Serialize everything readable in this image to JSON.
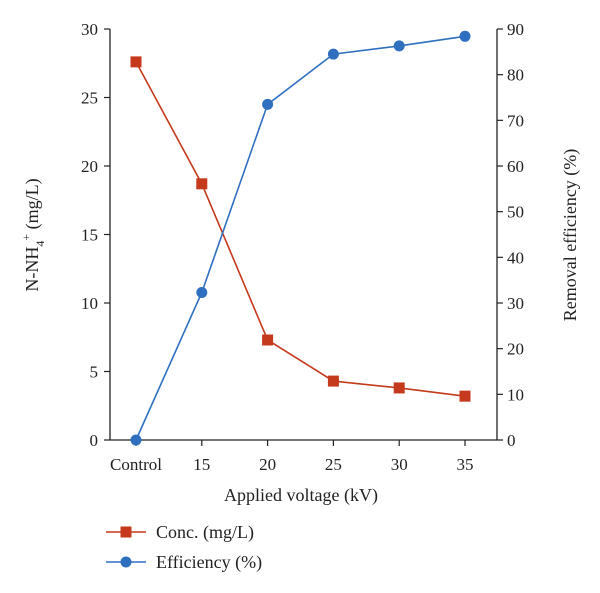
{
  "chart_data": {
    "type": "line",
    "categories": [
      "Control",
      "15",
      "20",
      "25",
      "30",
      "35"
    ],
    "xlabel": "Applied voltage (kV)",
    "ylabel_left": {
      "prefix": "N-NH",
      "sub": "4",
      "sup": "+",
      "suffix": " (mg/L)"
    },
    "ylabel_right": "Removal efficiency (%)",
    "ylim_left": [
      0,
      30
    ],
    "ylim_right": [
      0,
      90
    ],
    "yticks_left": [
      0,
      5,
      10,
      15,
      20,
      25,
      30
    ],
    "yticks_right": [
      0,
      10,
      20,
      30,
      40,
      50,
      60,
      70,
      80,
      90
    ],
    "grid": false,
    "legend_position": "bottom-left",
    "series": [
      {
        "name": "Conc. (mg/L)",
        "axis": "left",
        "marker": "square",
        "color": "#c5391c",
        "values": [
          27.6,
          18.7,
          7.3,
          4.3,
          3.8,
          3.2
        ]
      },
      {
        "name": "Efficiency (%)",
        "axis": "right",
        "marker": "circle",
        "color": "#2f6fbf",
        "values": [
          0,
          32.3,
          73.5,
          84.5,
          86.3,
          88.4
        ]
      }
    ]
  }
}
